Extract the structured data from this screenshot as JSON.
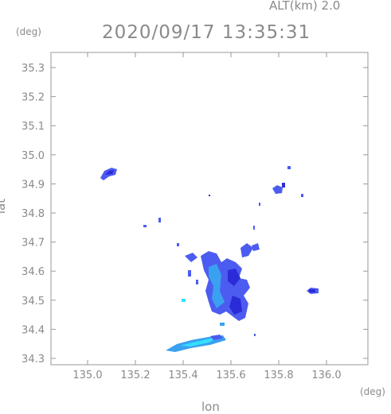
{
  "header": {
    "altitude": "ALT(km)  2.0",
    "timestamp": "2020/09/17 13:35:31"
  },
  "axes": {
    "y_unit": "(deg)",
    "x_unit": "(deg)",
    "y_label": "lat",
    "x_label": "lon",
    "x_ticks": [
      "135.0",
      "135.2",
      "135.4",
      "135.6",
      "135.8",
      "136.0"
    ],
    "y_ticks": [
      "35.3",
      "35.2",
      "35.1",
      "35.0",
      "34.9",
      "34.8",
      "34.7",
      "34.6",
      "34.5",
      "34.4",
      "34.3"
    ]
  },
  "colors": {
    "frame": "#9a9a9a",
    "echo_strong": "#2b2bd8",
    "echo_medium": "#4c5cf0",
    "echo_light": "#3aa0f0",
    "echo_cyan": "#33e0ff"
  }
}
